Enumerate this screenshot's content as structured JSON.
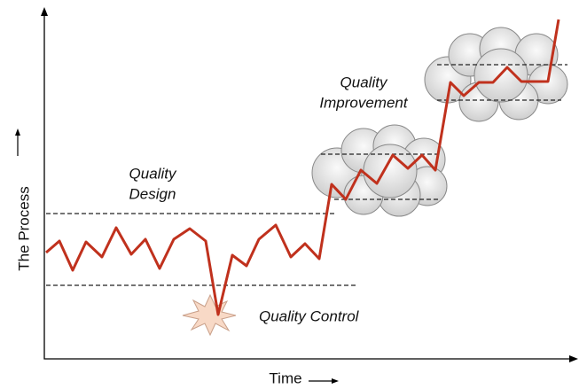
{
  "axes": {
    "y_label": "The Process",
    "x_label": "Time"
  },
  "annotations": {
    "design": {
      "lines": [
        "Quality",
        "Design"
      ]
    },
    "control": {
      "text": "Quality Control"
    },
    "improvement": {
      "lines": [
        "Quality",
        "Improvement"
      ]
    }
  }
}
